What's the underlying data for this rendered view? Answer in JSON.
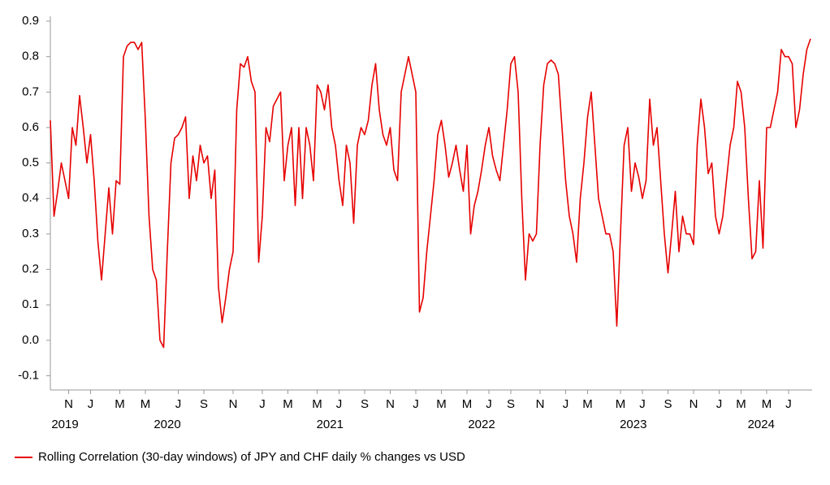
{
  "chart_data": {
    "type": "line",
    "categories": [
      null,
      null,
      null,
      null,
      null,
      "N",
      null,
      null,
      null,
      null,
      null,
      "J",
      null,
      null,
      null,
      null,
      null,
      null,
      null,
      "M",
      null,
      null,
      null,
      null,
      null,
      null,
      "M",
      null,
      null,
      null,
      null,
      null,
      null,
      null,
      null,
      "J",
      null,
      null,
      null,
      null,
      null,
      null,
      "S",
      null,
      null,
      null,
      null,
      null,
      null,
      null,
      "N",
      null,
      null,
      null,
      null,
      null,
      null,
      null,
      "J",
      null,
      null,
      null,
      null,
      null,
      null,
      "M",
      null,
      null,
      null,
      null,
      null,
      null,
      null,
      "M",
      null,
      null,
      null,
      null,
      null,
      "J",
      null,
      null,
      null,
      null,
      null,
      null,
      "S",
      null,
      null,
      null,
      null,
      null,
      null,
      "N",
      null,
      null,
      null,
      null,
      null,
      null,
      "J",
      null,
      null,
      null,
      null,
      null,
      null,
      "M",
      null,
      null,
      null,
      null,
      null,
      null,
      "M",
      null,
      null,
      null,
      null,
      null,
      "J",
      null,
      null,
      null,
      null,
      null,
      "S",
      null,
      null,
      null,
      null,
      null,
      null,
      null,
      "N",
      null,
      null,
      null,
      null,
      null,
      null,
      "J",
      null,
      null,
      null,
      null,
      null,
      "M",
      null,
      null,
      null,
      null,
      null,
      null,
      null,
      null,
      "M",
      null,
      null,
      null,
      null,
      null,
      "J",
      null,
      null,
      null,
      null,
      null,
      null,
      "S",
      null,
      null,
      null,
      null,
      null,
      null,
      "N",
      null,
      null,
      null,
      null,
      null,
      null,
      "J",
      null,
      null,
      null,
      null,
      null,
      "M",
      null,
      null,
      null,
      null,
      null,
      null,
      "M",
      null,
      null,
      null,
      null,
      null,
      "J",
      null,
      null,
      null,
      null,
      null,
      null
    ],
    "year_groups": [
      {
        "label": "2019",
        "start": 0,
        "end": 9
      },
      {
        "label": "2020",
        "start": 9,
        "end": 56
      },
      {
        "label": "2021",
        "start": 56,
        "end": 98
      },
      {
        "label": "2022",
        "start": 98,
        "end": 139
      },
      {
        "label": "2023",
        "start": 139,
        "end": 181
      },
      {
        "label": "2024",
        "start": 181,
        "end": 209
      }
    ],
    "series": [
      {
        "name": "Rolling Correlation (30-day windows) of JPY and CHF daily % changes vs USD",
        "color": "#e60000",
        "values": [
          0.62,
          0.35,
          0.42,
          0.5,
          0.45,
          0.4,
          0.6,
          0.55,
          0.69,
          0.6,
          0.5,
          0.58,
          0.45,
          0.28,
          0.17,
          0.3,
          0.43,
          0.3,
          0.45,
          0.44,
          0.8,
          0.83,
          0.84,
          0.84,
          0.82,
          0.84,
          0.62,
          0.35,
          0.2,
          0.17,
          0.0,
          -0.02,
          0.25,
          0.5,
          0.57,
          0.58,
          0.6,
          0.63,
          0.4,
          0.52,
          0.45,
          0.55,
          0.5,
          0.52,
          0.4,
          0.48,
          0.15,
          0.05,
          0.12,
          0.2,
          0.25,
          0.65,
          0.78,
          0.77,
          0.8,
          0.73,
          0.7,
          0.22,
          0.35,
          0.6,
          0.56,
          0.66,
          0.68,
          0.7,
          0.45,
          0.55,
          0.6,
          0.38,
          0.6,
          0.4,
          0.6,
          0.55,
          0.45,
          0.72,
          0.7,
          0.65,
          0.72,
          0.6,
          0.55,
          0.45,
          0.38,
          0.55,
          0.5,
          0.33,
          0.55,
          0.6,
          0.58,
          0.62,
          0.72,
          0.78,
          0.65,
          0.58,
          0.55,
          0.6,
          0.48,
          0.45,
          0.7,
          0.75,
          0.8,
          0.75,
          0.7,
          0.08,
          0.12,
          0.25,
          0.35,
          0.45,
          0.58,
          0.62,
          0.55,
          0.46,
          0.5,
          0.55,
          0.48,
          0.42,
          0.55,
          0.3,
          0.38,
          0.42,
          0.48,
          0.55,
          0.6,
          0.52,
          0.48,
          0.45,
          0.55,
          0.65,
          0.78,
          0.8,
          0.7,
          0.4,
          0.17,
          0.3,
          0.28,
          0.3,
          0.55,
          0.72,
          0.78,
          0.79,
          0.78,
          0.75,
          0.6,
          0.45,
          0.35,
          0.3,
          0.22,
          0.4,
          0.5,
          0.63,
          0.7,
          0.55,
          0.4,
          0.35,
          0.3,
          0.3,
          0.25,
          0.04,
          0.3,
          0.55,
          0.6,
          0.42,
          0.5,
          0.46,
          0.4,
          0.45,
          0.68,
          0.55,
          0.6,
          0.45,
          0.3,
          0.19,
          0.3,
          0.42,
          0.25,
          0.35,
          0.3,
          0.3,
          0.27,
          0.55,
          0.68,
          0.6,
          0.47,
          0.5,
          0.35,
          0.3,
          0.35,
          0.45,
          0.55,
          0.6,
          0.73,
          0.7,
          0.6,
          0.4,
          0.23,
          0.25,
          0.45,
          0.26,
          0.6,
          0.6,
          0.65,
          0.7,
          0.82,
          0.8,
          0.8,
          0.78,
          0.6,
          0.65,
          0.75,
          0.82,
          0.85
        ]
      }
    ],
    "ylim": [
      -0.14,
      0.9
    ],
    "yticks": [
      -0.1,
      0.1,
      0.2,
      0.3,
      0.4,
      0.5,
      0.6,
      0.7,
      0.8,
      0.9,
      {
        "value": 0,
        "label": "0.0"
      }
    ],
    "grid": false,
    "legend": "bottom-left"
  }
}
